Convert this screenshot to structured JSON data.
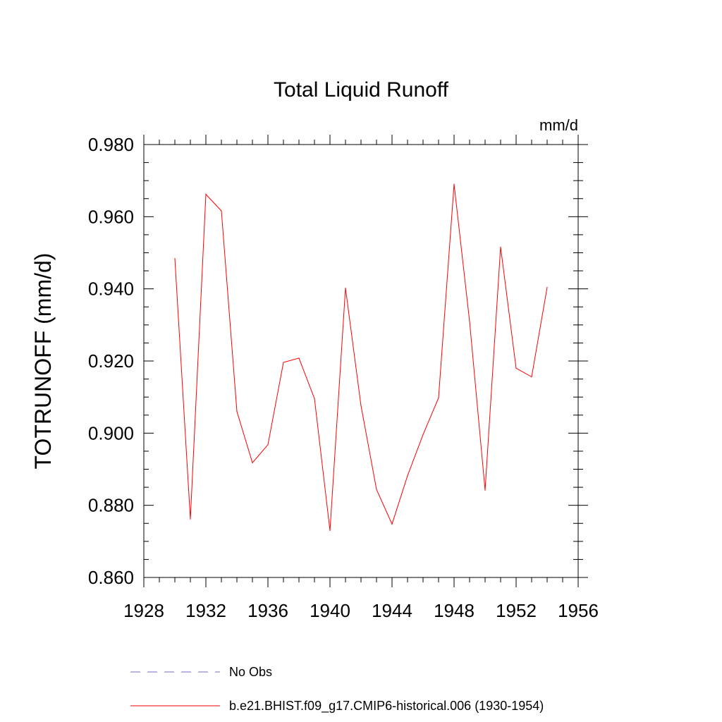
{
  "chart_data": {
    "type": "line",
    "title": "Total Liquid Runoff",
    "units": "mm/d",
    "ylabel": "TOTRUNOFF  (mm/d)",
    "xlabel": "",
    "xlim": [
      1928,
      1956
    ],
    "ylim": [
      0.86,
      0.98
    ],
    "x_ticks": [
      "1928",
      "1932",
      "1936",
      "1940",
      "1944",
      "1948",
      "1952",
      "1956"
    ],
    "y_ticks": [
      "0.860",
      "0.880",
      "0.900",
      "0.920",
      "0.940",
      "0.960",
      "0.980"
    ],
    "grid": false,
    "series": [
      {
        "name": "b.e21.BHIST.f09_g17.CMIP6-historical.006 (1930-1954)",
        "color": "#ff0000",
        "x": [
          1930,
          1931,
          1932,
          1933,
          1934,
          1935,
          1936,
          1937,
          1938,
          1939,
          1940,
          1941,
          1942,
          1943,
          1944,
          1945,
          1946,
          1947,
          1948,
          1949,
          1950,
          1951,
          1952,
          1953,
          1954
        ],
        "values": [
          0.9484,
          0.8762,
          0.9662,
          0.9616,
          0.906,
          0.8918,
          0.8968,
          0.9196,
          0.9208,
          0.9096,
          0.873,
          0.9402,
          0.9076,
          0.8844,
          0.8748,
          0.8882,
          0.8996,
          0.9098,
          0.969,
          0.931,
          0.8842,
          0.9516,
          0.918,
          0.9156,
          0.9404
        ]
      }
    ],
    "legend": {
      "placement": "bottom",
      "entries": [
        {
          "label": "No Obs",
          "style": "dashed",
          "color": "#7b68c8"
        },
        {
          "label": "b.e21.BHIST.f09_g17.CMIP6-historical.006 (1930-1954)",
          "style": "solid",
          "color": "#ff0000"
        }
      ]
    }
  }
}
